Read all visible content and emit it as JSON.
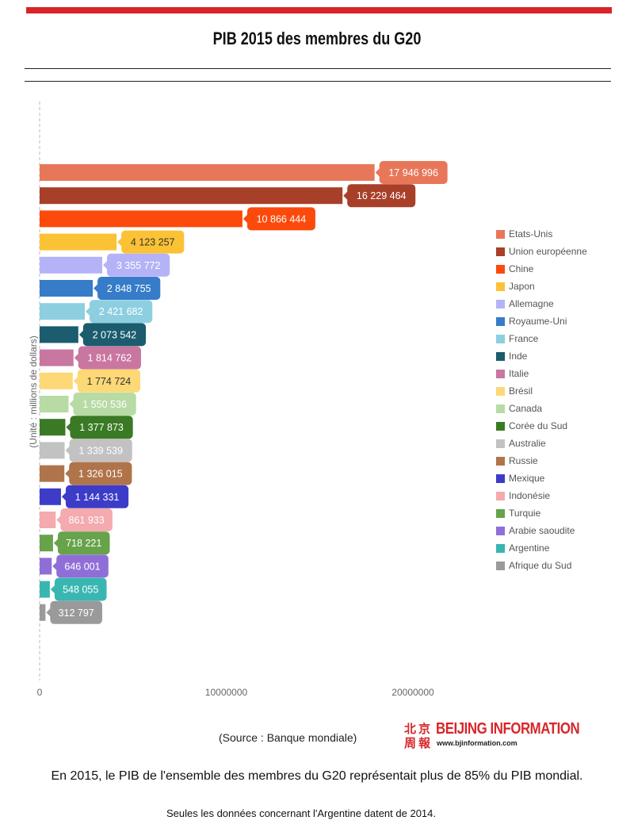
{
  "header": {
    "title": "PIB 2015 des membres du G20",
    "accent_color": "#d7262b"
  },
  "chart_data": {
    "type": "bar",
    "orientation": "horizontal",
    "title": "PIB 2015 des membres du G20",
    "ylabel": "(Unité : millions de dollars)",
    "xlabel": "",
    "xlim": [
      0,
      20000000
    ],
    "xticks": [
      "0",
      "10000000",
      "20000000"
    ],
    "legend_position": "right",
    "grid": false,
    "categories": [
      "Etats-Unis",
      "Union européenne",
      "Chine",
      "Japon",
      "Allemagne",
      "Royaume-Uni",
      "France",
      "Inde",
      "Italie",
      "Brésil",
      "Canada",
      "Corée du Sud",
      "Australie",
      "Russie",
      "Mexique",
      "Indonésie",
      "Turquie",
      "Arabie saoudite",
      "Argentine",
      "Afrique du Sud"
    ],
    "values": [
      17946996,
      16229464,
      10866444,
      4123257,
      3355772,
      2848755,
      2421682,
      2073542,
      1814762,
      1774724,
      1550536,
      1377873,
      1339539,
      1326015,
      1144331,
      861933,
      718221,
      646001,
      548055,
      312797
    ],
    "value_labels": [
      "17 946 996",
      "16 229 464",
      "10 866 444",
      "4 123 257",
      "3 355 772",
      "2 848 755",
      "2 421 682",
      "2 073 542",
      "1 814 762",
      "1 774 724",
      "1 550 536",
      "1 377 873",
      "1 339 539",
      "1 326 015",
      "1 144 331",
      "861 933",
      "718 221",
      "646 001",
      "548 055",
      "312 797"
    ],
    "colors": [
      "#e8775a",
      "#a83f28",
      "#fb4a0c",
      "#fcc236",
      "#b5b3f7",
      "#367cc9",
      "#8dcfe0",
      "#1b5c6e",
      "#c976a0",
      "#fcd877",
      "#b8dba5",
      "#3a7a24",
      "#c2c2c2",
      "#b0744a",
      "#3c3cc8",
      "#f4aaae",
      "#66a34a",
      "#8f6fd7",
      "#39b6b2",
      "#9a9a9a"
    ],
    "label_text_colors": [
      "#ffffff",
      "#ffffff",
      "#ffffff",
      "#333333",
      "#ffffff",
      "#ffffff",
      "#ffffff",
      "#ffffff",
      "#ffffff",
      "#333333",
      "#ffffff",
      "#ffffff",
      "#ffffff",
      "#ffffff",
      "#ffffff",
      "#ffffff",
      "#ffffff",
      "#ffffff",
      "#ffffff",
      "#ffffff"
    ]
  },
  "footer": {
    "source": "(Source : Banque mondiale)",
    "logo_name": "BEIJING INFORMATION",
    "logo_url": "www.bjinformation.com",
    "logo_cn": [
      "北",
      "京",
      "周",
      "報"
    ],
    "note1": "En 2015, le PIB de l'ensemble des membres du G20 représentait plus de 85% du PIB mondial.",
    "note2": "Seules les données concernant l'Argentine datent de 2014."
  }
}
